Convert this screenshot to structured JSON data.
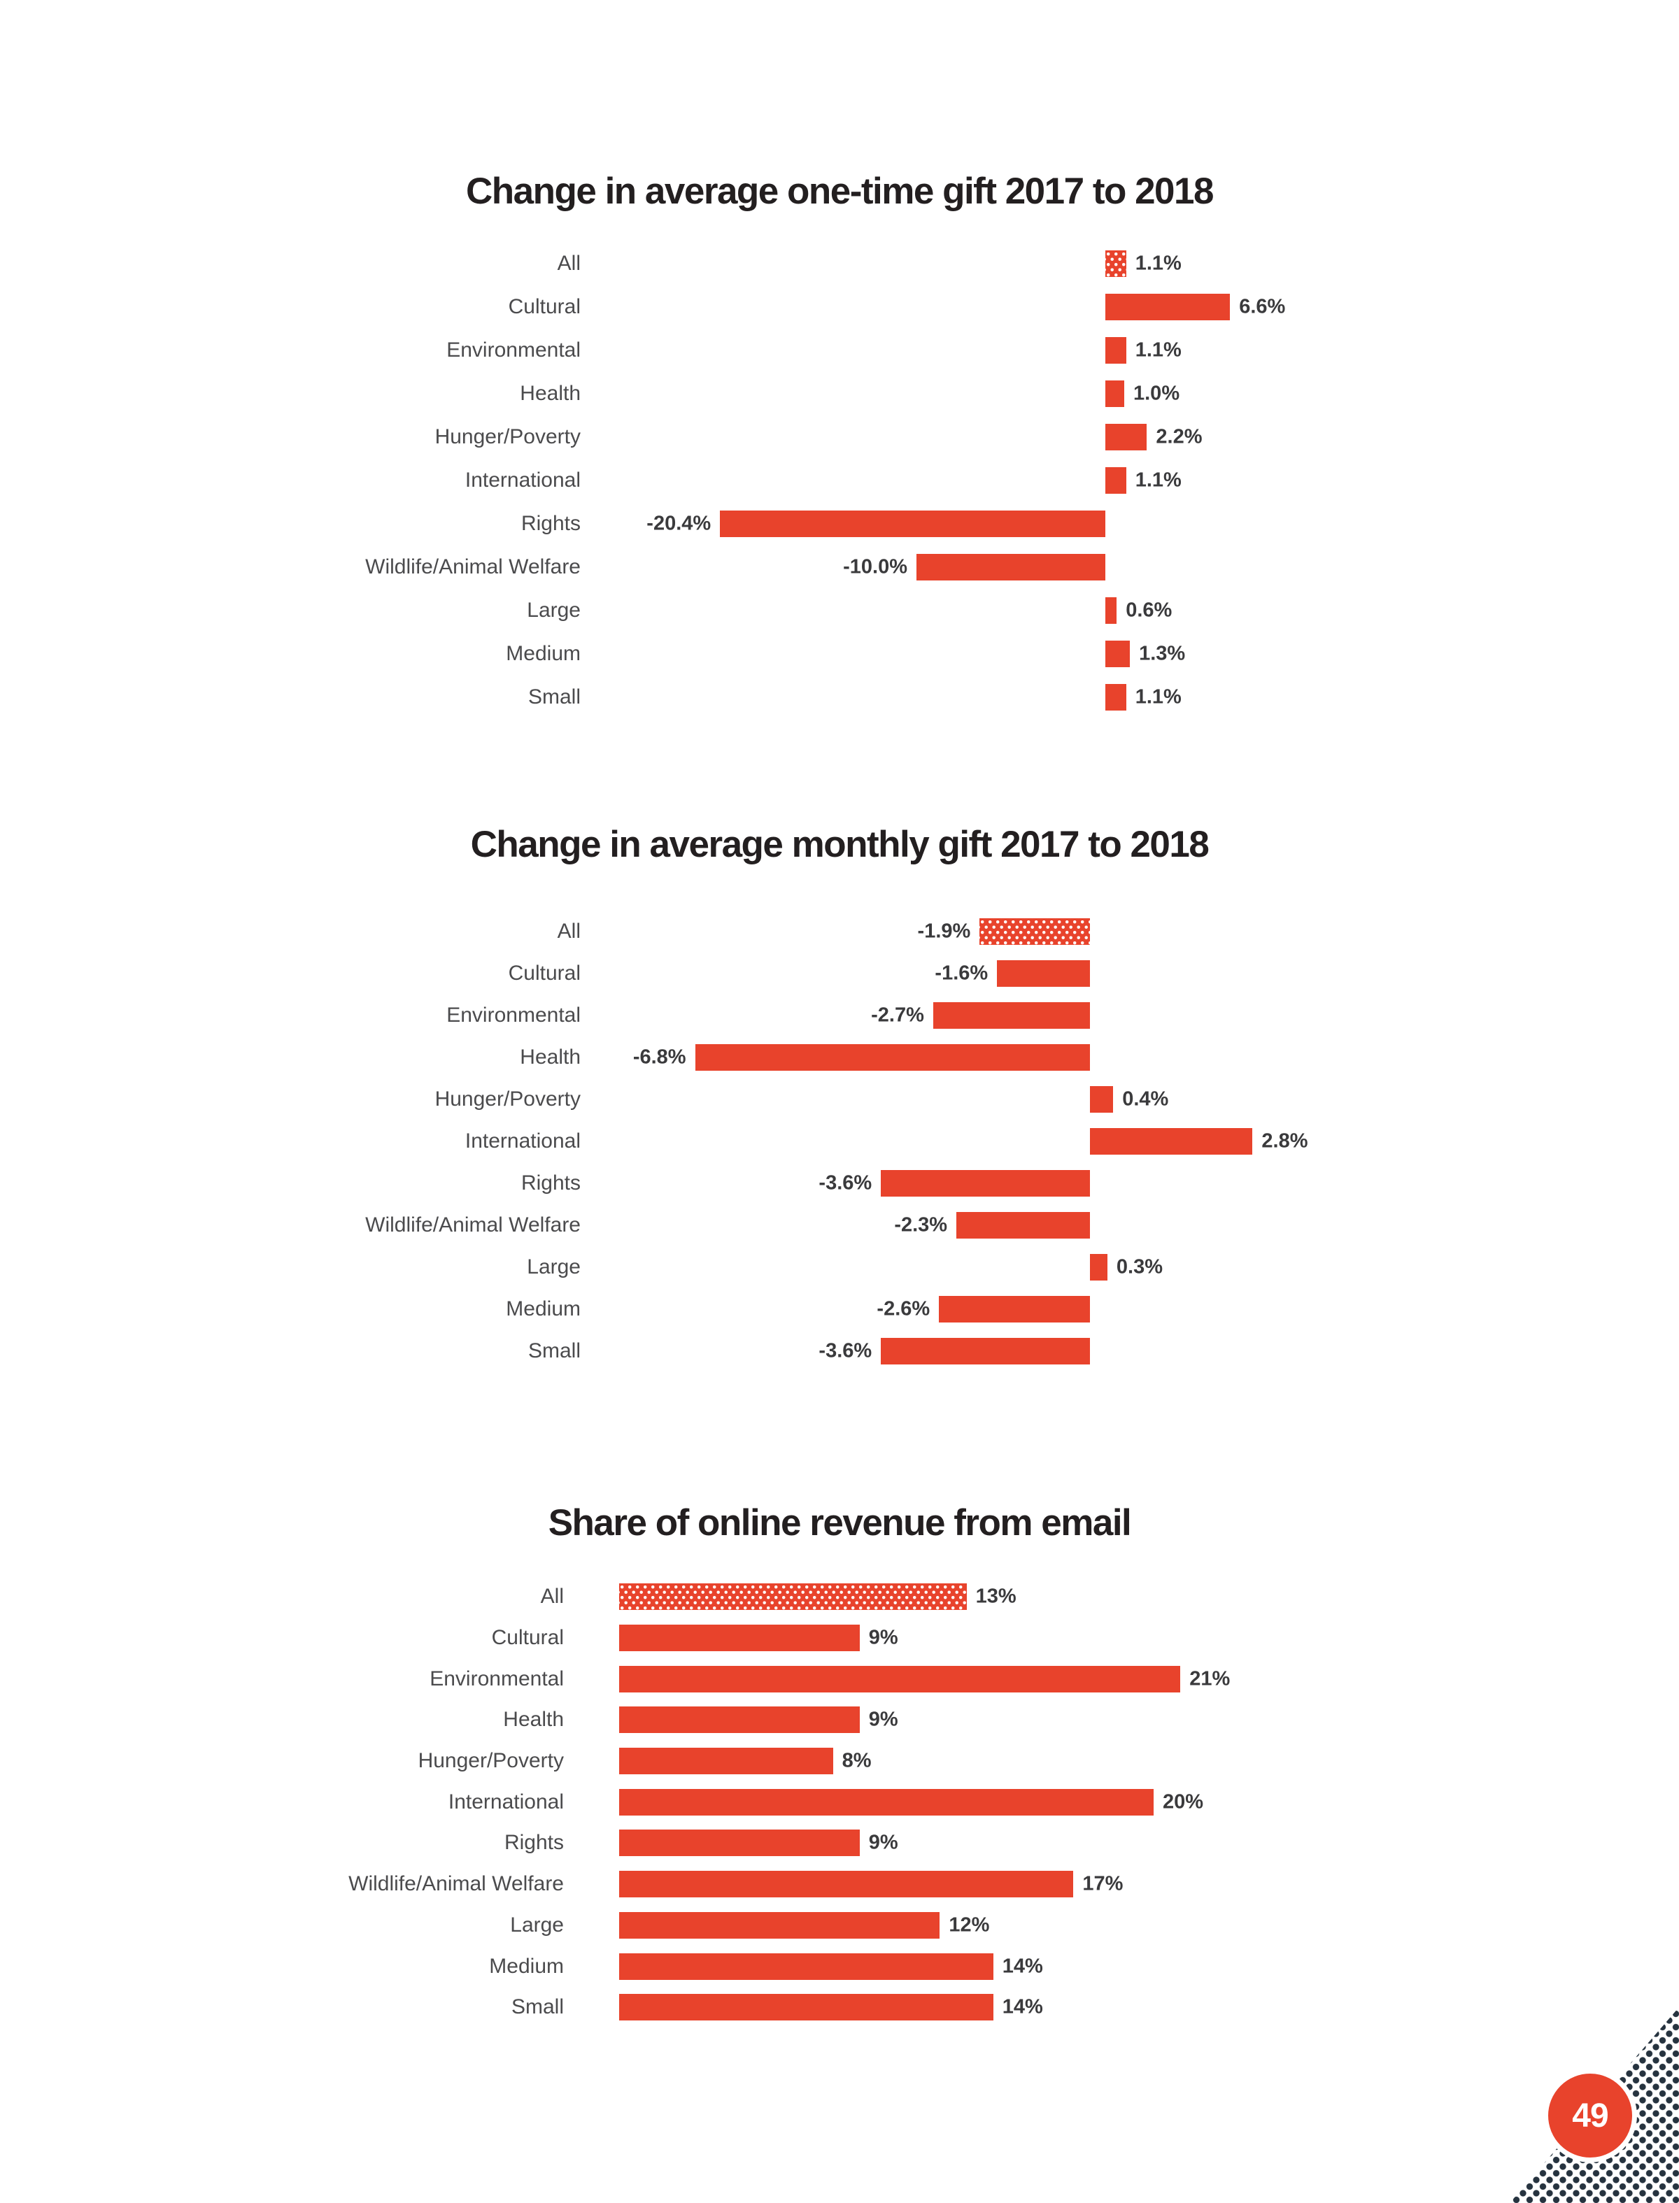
{
  "page": {
    "number": "49"
  },
  "theme": {
    "accent_red": "#e8432c",
    "halftone_navy": "#26333f",
    "title_color": "#231f20",
    "label_color": "#4b4b4d",
    "value_color": "#3a3a3c"
  },
  "chart_data": [
    {
      "type": "bar",
      "orientation": "horizontal",
      "title": "Change in average one-time gift 2017 to 2018",
      "value_unit": "%",
      "categories": [
        "All",
        "Cultural",
        "Environmental",
        "Health",
        "Hunger/Poverty",
        "International",
        "Rights",
        "Wildlife/Animal Welfare",
        "Large",
        "Medium",
        "Small"
      ],
      "values": [
        1.1,
        6.6,
        1.1,
        1.0,
        2.2,
        1.1,
        -20.4,
        -10.0,
        0.6,
        1.3,
        1.1
      ],
      "value_labels": [
        "1.1%",
        "6.6%",
        "1.1%",
        "1.0%",
        "2.2%",
        "1.1%",
        "-20.4%",
        "-10.0%",
        "0.6%",
        "1.3%",
        "1.1%"
      ],
      "patterned_category": "All",
      "xlim": [
        -22,
        8
      ],
      "grid": false,
      "legend": "none"
    },
    {
      "type": "bar",
      "orientation": "horizontal",
      "title": "Change in average monthly gift 2017 to 2018",
      "value_unit": "%",
      "categories": [
        "All",
        "Cultural",
        "Environmental",
        "Health",
        "Hunger/Poverty",
        "International",
        "Rights",
        "Wildlife/Animal Welfare",
        "Large",
        "Medium",
        "Small"
      ],
      "values": [
        -1.9,
        -1.6,
        -2.7,
        -6.8,
        0.4,
        2.8,
        -3.6,
        -2.3,
        0.3,
        -2.6,
        -3.6
      ],
      "value_labels": [
        "-1.9%",
        "-1.6%",
        "-2.7%",
        "-6.8%",
        "0.4%",
        "2.8%",
        "-3.6%",
        "-2.3%",
        "0.3%",
        "-2.6%",
        "-3.6%"
      ],
      "patterned_category": "All",
      "xlim": [
        -7.5,
        3.5
      ],
      "grid": false,
      "legend": "none"
    },
    {
      "type": "bar",
      "orientation": "horizontal",
      "title": "Share of online revenue from email",
      "value_unit": "%",
      "categories": [
        "All",
        "Cultural",
        "Environmental",
        "Health",
        "Hunger/Poverty",
        "International",
        "Rights",
        "Wildlife/Animal Welfare",
        "Large",
        "Medium",
        "Small"
      ],
      "values": [
        13,
        9,
        21,
        9,
        8,
        20,
        9,
        17,
        12,
        14,
        14
      ],
      "value_labels": [
        "13%",
        "9%",
        "21%",
        "9%",
        "8%",
        "20%",
        "9%",
        "17%",
        "12%",
        "14%",
        "14%"
      ],
      "patterned_category": "All",
      "xlim": [
        0,
        22
      ],
      "grid": false,
      "legend": "none"
    }
  ]
}
